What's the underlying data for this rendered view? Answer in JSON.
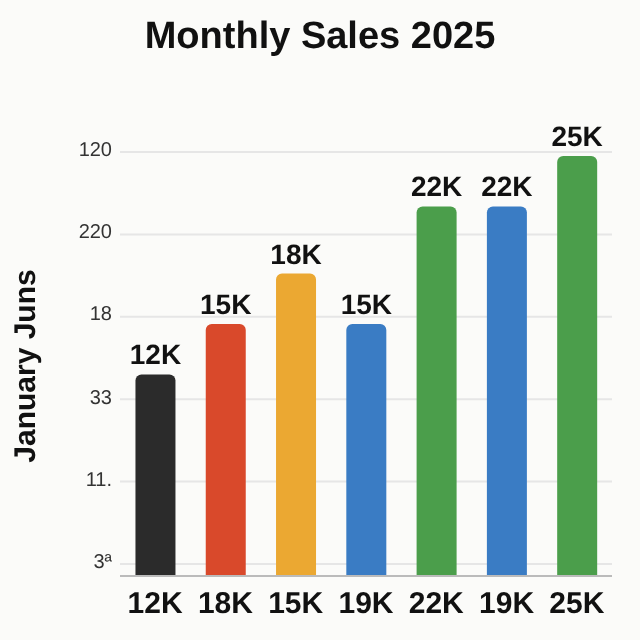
{
  "chart_data": {
    "type": "bar",
    "title": "Monthly Sales 2025",
    "ylabel": "January Juns",
    "categories": [
      "12K",
      "18K",
      "15K",
      "19K",
      "22K",
      "19K",
      "25K"
    ],
    "values": [
      12000,
      15000,
      18000,
      15000,
      22000,
      22000,
      25000
    ],
    "value_labels": [
      "12K",
      "15K",
      "18K",
      "15K",
      "22K",
      "22K",
      "25K"
    ],
    "colors": [
      "#2b2b2b",
      "#d9492b",
      "#eba832",
      "#3a7cc4",
      "#4b9e4b",
      "#3a7cc4",
      "#4b9e4b"
    ],
    "annotations": [
      "120",
      "220",
      "18",
      "33",
      "11.",
      "3ª"
    ]
  }
}
